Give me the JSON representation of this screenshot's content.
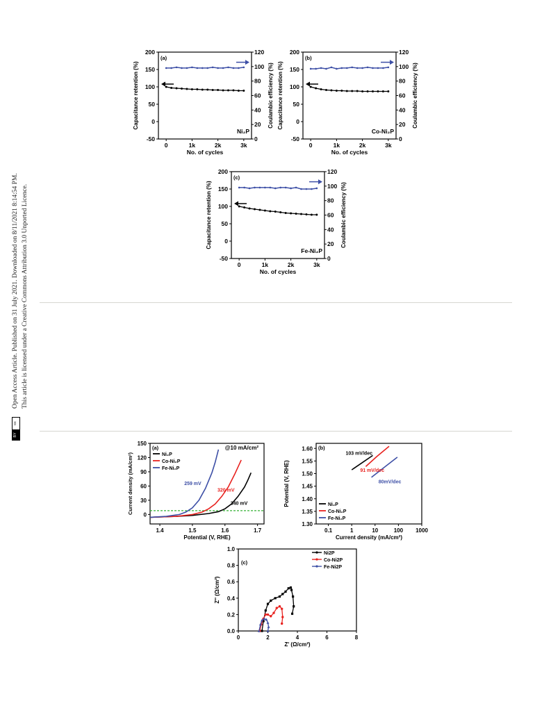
{
  "sidebar": {
    "line1": "Open Access Article. Published on 31 July 2021. Downloaded on 8/11/2021 8:14:54 PM.",
    "line2": "This article is licensed under a Creative Commons Attribution 3.0 Unported Licence.",
    "badge_cc": "cc",
    "badge_by": "BY"
  },
  "colors": {
    "black_series": "#000000",
    "red_series": "#e8221f",
    "blue_series": "#3d4fa6",
    "dash": "#35b135"
  },
  "stability_panels": [
    {
      "panel": "(a)",
      "sample": "Ni₂P"
    },
    {
      "panel": "(b)",
      "sample": "Co-Ni₂P"
    },
    {
      "panel": "(c)",
      "sample": "Fe-Ni₂P"
    }
  ],
  "stability_axes": {
    "xlabel": "No. of cycles",
    "ylabel_left": "Capacitance retention (%)",
    "ylabel_right": "Coulambic efficiency (%)",
    "x_ticks": [
      "0",
      "1k",
      "2k",
      "3k"
    ],
    "y_left_ticks": [
      "200",
      "150",
      "100",
      "50",
      "0",
      "-50"
    ],
    "y_right_ticks": [
      "120",
      "100",
      "80",
      "60",
      "40",
      "20",
      "0"
    ]
  },
  "lsv_panel": {
    "panel": "(a)",
    "annotation": "@10 mA/cm²",
    "xlabel": "Potential (V, RHE)",
    "ylabel": "Current density (mA/cm²)",
    "x_ticks": [
      "1.4",
      "1.5",
      "1.6",
      "1.7"
    ],
    "y_ticks": [
      "150",
      "120",
      "90",
      "60",
      "30",
      "0"
    ],
    "legend": [
      "Ni₂P",
      "Co-Ni₂P",
      "Fe-Ni₂P"
    ],
    "labels": [
      "259 mV",
      "320 mV",
      "340 mV"
    ]
  },
  "tafel_panel": {
    "panel": "(b)",
    "xlabel": "Current density (mA/cm²)",
    "ylabel": "Potential (V, RHE)",
    "x_ticks": [
      "0.1",
      "1",
      "10",
      "100",
      "1000"
    ],
    "y_ticks": [
      "1.60",
      "1.55",
      "1.50",
      "1.45",
      "1.40",
      "1.35",
      "1.30"
    ],
    "legend": [
      "Ni₂P",
      "Co-Ni₂P",
      "Fe-Ni₂P"
    ],
    "labels": [
      "103 mV/dec",
      "91 mV/dec",
      "80mV/dec"
    ]
  },
  "eis_panel": {
    "panel": "(c)",
    "xlabel": "Z' (Ω/cm²)",
    "ylabel": "Z'' (Ω/cm²)",
    "x_ticks": [
      "0",
      "2",
      "4",
      "6",
      "8"
    ],
    "y_ticks": [
      "1.0",
      "0.8",
      "0.6",
      "0.4",
      "0.2",
      "0.0"
    ],
    "legend": [
      "Ni2P",
      "Co-Ni2P",
      "Fe-Ni2P"
    ]
  },
  "chart_data": [
    {
      "type": "line",
      "title": "",
      "panel": "(a)",
      "xlabel": "No. of cycles",
      "ylabel": "Capacitance retention (%)",
      "y2label": "Coulambic efficiency (%)",
      "xlim": [
        -300,
        3300
      ],
      "ylim": [
        -50,
        200
      ],
      "y2lim": [
        0,
        120
      ],
      "series": [
        {
          "name": "",
          "axis": "left",
          "color": "#000000",
          "x": [
            0,
            200,
            400,
            600,
            800,
            1000,
            1200,
            1400,
            1600,
            1800,
            2000,
            2200,
            2400,
            2600,
            2800,
            3000
          ],
          "y": [
            100,
            97,
            96,
            95,
            94,
            93,
            93,
            92,
            92,
            91,
            91,
            90,
            90,
            90,
            89,
            89
          ]
        },
        {
          "name": "",
          "axis": "right",
          "color": "#3d4fa6",
          "x": [
            0,
            200,
            400,
            600,
            800,
            1000,
            1200,
            1400,
            1600,
            1800,
            2000,
            2200,
            2400,
            2600,
            2800,
            3000
          ],
          "y": [
            98,
            98,
            99,
            98,
            98,
            99,
            98,
            98,
            98,
            99,
            98,
            98,
            99,
            98,
            98,
            99
          ]
        }
      ]
    },
    {
      "type": "line",
      "title": "",
      "panel": "(b)",
      "xlabel": "No. of cycles",
      "ylabel": "Capacitance retention (%)",
      "y2label": "Coulambic efficiency (%)",
      "xlim": [
        -300,
        3300
      ],
      "ylim": [
        -50,
        200
      ],
      "y2lim": [
        0,
        120
      ],
      "series": [
        {
          "name": "",
          "axis": "left",
          "color": "#000000",
          "x": [
            0,
            200,
            400,
            600,
            800,
            1000,
            1200,
            1400,
            1600,
            1800,
            2000,
            2200,
            2400,
            2600,
            2800,
            3000
          ],
          "y": [
            100,
            96,
            93,
            91,
            90,
            89,
            89,
            88,
            88,
            88,
            87,
            87,
            87,
            87,
            87,
            87
          ]
        },
        {
          "name": "",
          "axis": "right",
          "color": "#3d4fa6",
          "x": [
            0,
            200,
            400,
            600,
            800,
            1000,
            1200,
            1400,
            1600,
            1800,
            2000,
            2200,
            2400,
            2600,
            2800,
            3000
          ],
          "y": [
            97,
            97,
            98,
            97,
            99,
            97,
            98,
            98,
            99,
            98,
            98,
            99,
            98,
            98,
            98,
            99
          ]
        }
      ]
    },
    {
      "type": "line",
      "title": "",
      "panel": "(c)",
      "xlabel": "No. of cycles",
      "ylabel": "Capacitance retention (%)",
      "y2label": "Coulambic efficiency (%)",
      "xlim": [
        -300,
        3300
      ],
      "ylim": [
        -50,
        200
      ],
      "y2lim": [
        0,
        120
      ],
      "series": [
        {
          "name": "",
          "axis": "left",
          "color": "#000000",
          "x": [
            0,
            200,
            400,
            600,
            800,
            1000,
            1200,
            1400,
            1600,
            1800,
            2000,
            2200,
            2400,
            2600,
            2800,
            3000
          ],
          "y": [
            100,
            97,
            94,
            92,
            90,
            88,
            86,
            85,
            83,
            81,
            80,
            79,
            78,
            77,
            76,
            76
          ]
        },
        {
          "name": "",
          "axis": "right",
          "color": "#3d4fa6",
          "x": [
            0,
            200,
            400,
            600,
            800,
            1000,
            1200,
            1400,
            1600,
            1800,
            2000,
            2200,
            2400,
            2600,
            2800,
            3000
          ],
          "y": [
            98,
            98,
            97,
            98,
            98,
            98,
            98,
            97,
            98,
            98,
            97,
            98,
            96,
            96,
            96,
            97
          ]
        }
      ]
    },
    {
      "type": "line",
      "title": "",
      "panel": "(a)",
      "xlabel": "Potential (V, RHE)",
      "ylabel": "Current density (mA/cm²)",
      "xlim": [
        1.37,
        1.72
      ],
      "ylim": [
        -20,
        150
      ],
      "hline_y": 8,
      "series": [
        {
          "name": "Ni₂P",
          "color": "#000000",
          "x": [
            1.37,
            1.45,
            1.5,
            1.55,
            1.58,
            1.6,
            1.62,
            1.64,
            1.66,
            1.67,
            1.68
          ],
          "y": [
            -6,
            -4,
            -2,
            2,
            6,
            12,
            22,
            38,
            58,
            72,
            88
          ]
        },
        {
          "name": "Co-Ni₂P",
          "color": "#e8221f",
          "x": [
            1.37,
            1.45,
            1.5,
            1.53,
            1.55,
            1.57,
            1.59,
            1.61,
            1.63,
            1.65
          ],
          "y": [
            -6,
            -4,
            0,
            5,
            12,
            22,
            38,
            58,
            85,
            115
          ]
        },
        {
          "name": "Fe-Ni₂P",
          "color": "#3d4fa6",
          "x": [
            1.37,
            1.42,
            1.46,
            1.48,
            1.5,
            1.52,
            1.54,
            1.56,
            1.57,
            1.58
          ],
          "y": [
            -6,
            -4,
            0,
            5,
            14,
            30,
            55,
            88,
            110,
            137
          ]
        }
      ]
    },
    {
      "type": "line",
      "title": "",
      "panel": "(b)",
      "xlabel": "Current density (mA/cm²)",
      "ylabel": "Potential (V, RHE)",
      "xscale": "log",
      "xlim": [
        0.03,
        1000
      ],
      "ylim": [
        1.3,
        1.62
      ],
      "series": [
        {
          "name": "Ni₂P",
          "color": "#000000",
          "x": [
            1,
            3,
            8
          ],
          "y": [
            1.515,
            1.545,
            1.572
          ]
        },
        {
          "name": "Co-Ni₂P",
          "color": "#e8221f",
          "x": [
            4,
            12,
            40
          ],
          "y": [
            1.528,
            1.568,
            1.608
          ]
        },
        {
          "name": "Fe-Ni₂P",
          "color": "#3d4fa6",
          "x": [
            7,
            25,
            90
          ],
          "y": [
            1.485,
            1.525,
            1.565
          ]
        }
      ]
    },
    {
      "type": "scatter",
      "title": "",
      "panel": "(c)",
      "xlabel": "Z' (Ω/cm²)",
      "ylabel": "Z'' (Ω/cm²)",
      "xlim": [
        0,
        8
      ],
      "ylim": [
        0,
        1.0
      ],
      "series": [
        {
          "name": "Ni2P",
          "color": "#000000",
          "x": [
            1.6,
            1.7,
            1.85,
            2.0,
            2.2,
            2.5,
            2.8,
            3.0,
            3.2,
            3.4,
            3.55,
            3.6,
            3.7,
            3.75,
            3.65
          ],
          "y": [
            0.0,
            0.12,
            0.25,
            0.33,
            0.37,
            0.4,
            0.42,
            0.45,
            0.48,
            0.52,
            0.53,
            0.5,
            0.42,
            0.3,
            0.21
          ]
        },
        {
          "name": "Co-Ni2P",
          "color": "#e8221f",
          "x": [
            1.45,
            1.55,
            1.7,
            1.85,
            2.0,
            2.2,
            2.4,
            2.6,
            2.8,
            2.95,
            3.0,
            2.95
          ],
          "y": [
            0.0,
            0.08,
            0.15,
            0.2,
            0.2,
            0.18,
            0.22,
            0.28,
            0.3,
            0.27,
            0.17,
            0.09
          ]
        },
        {
          "name": "Fe-Ni2P",
          "color": "#3d4fa6",
          "x": [
            1.4,
            1.5,
            1.6,
            1.75,
            1.9,
            2.0,
            2.05,
            2.0
          ],
          "y": [
            0.0,
            0.08,
            0.13,
            0.15,
            0.14,
            0.1,
            0.05,
            0.0
          ]
        }
      ]
    }
  ]
}
